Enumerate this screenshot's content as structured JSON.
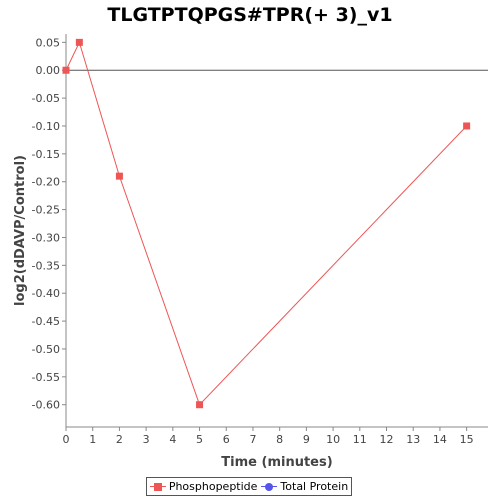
{
  "colors": {
    "phospho": "#ee5555",
    "total": "#5555ee",
    "zero_line": "#555555",
    "axis": "#888888"
  },
  "chart_data": {
    "type": "line",
    "title": "TLGTPTQPGS#TPR(+ 3)_v1",
    "xlabel": "Time (minutes)",
    "ylabel": "log2(dDAVP/Control)",
    "xlim": [
      0,
      15.8
    ],
    "ylim": [
      -0.64,
      0.065
    ],
    "x_ticks": [
      0,
      1,
      2,
      3,
      4,
      5,
      6,
      7,
      8,
      9,
      10,
      11,
      12,
      13,
      14,
      15
    ],
    "y_ticks": [
      0.05,
      0.0,
      -0.05,
      -0.1,
      -0.15,
      -0.2,
      -0.25,
      -0.3,
      -0.35,
      -0.4,
      -0.45,
      -0.5,
      -0.55,
      -0.6
    ],
    "y_tick_labels": [
      "0.05",
      "0.00",
      "-0.05",
      "-0.10",
      "-0.15",
      "-0.20",
      "-0.25",
      "-0.30",
      "-0.35",
      "-0.40",
      "-0.45",
      "-0.50",
      "-0.55",
      "-0.60"
    ],
    "grid": false,
    "zero_line": true,
    "legend_position": "bottom",
    "series": [
      {
        "name": "Phosphopeptide",
        "marker": "square",
        "color": "#ee5555",
        "x": [
          0,
          0.5,
          2,
          5,
          15
        ],
        "y": [
          0.0,
          0.05,
          -0.19,
          -0.6,
          -0.1
        ]
      },
      {
        "name": "Total Protein",
        "marker": "circle",
        "color": "#5555ee",
        "x": [],
        "y": []
      }
    ]
  }
}
